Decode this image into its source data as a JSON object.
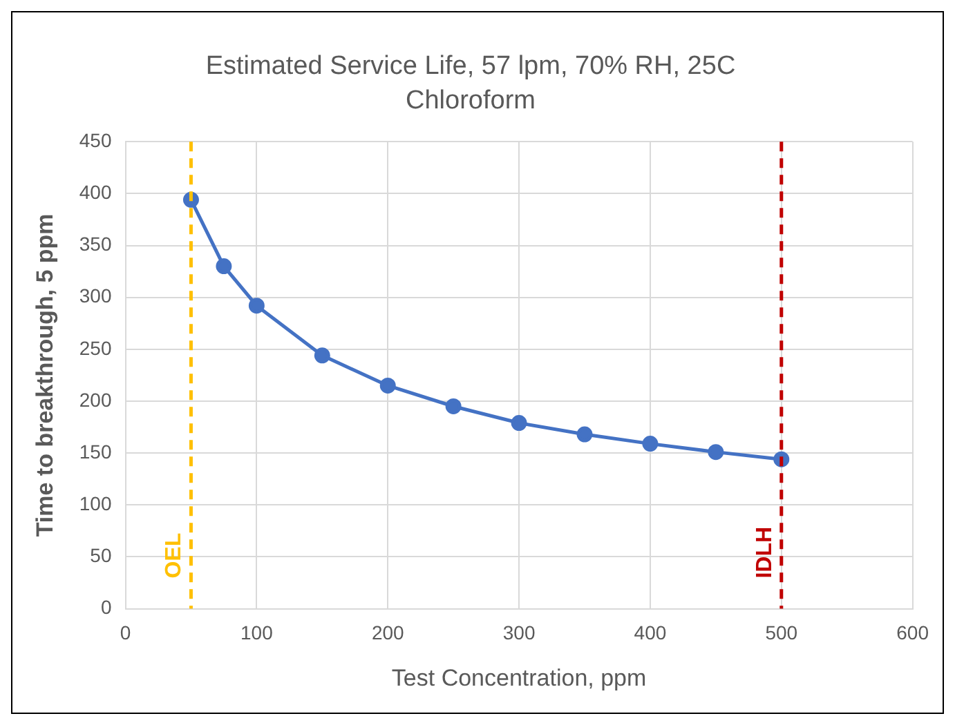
{
  "chart_data": {
    "type": "line",
    "title": "Estimated Service Life, 57 lpm, 70% RH, 25C",
    "subtitle": "Chloroform",
    "xlabel": "Test Concentration, ppm",
    "ylabel": "Time to breakthrough, 5 ppm",
    "x": [
      50,
      75,
      100,
      150,
      200,
      250,
      300,
      350,
      400,
      450,
      500
    ],
    "series": [
      {
        "color": "#4472c4",
        "values": [
          394,
          330,
          292,
          244,
          215,
          195,
          179,
          168,
          159,
          151,
          144
        ]
      }
    ],
    "xlim": [
      0,
      600
    ],
    "xticks": [
      0,
      100,
      200,
      300,
      400,
      500,
      600
    ],
    "ylim": [
      0,
      450
    ],
    "yticks": [
      0,
      50,
      100,
      150,
      200,
      250,
      300,
      350,
      400,
      450
    ],
    "grid": true,
    "legend": false,
    "marker": "circle",
    "line_style": "solid",
    "ref_lines": [
      {
        "axis": "x",
        "value": 50,
        "label": "OEL",
        "color": "#ffc000",
        "line_style": "dashed"
      },
      {
        "axis": "x",
        "value": 500,
        "label": "IDLH",
        "color": "#c00000",
        "line_style": "dashed"
      }
    ]
  }
}
